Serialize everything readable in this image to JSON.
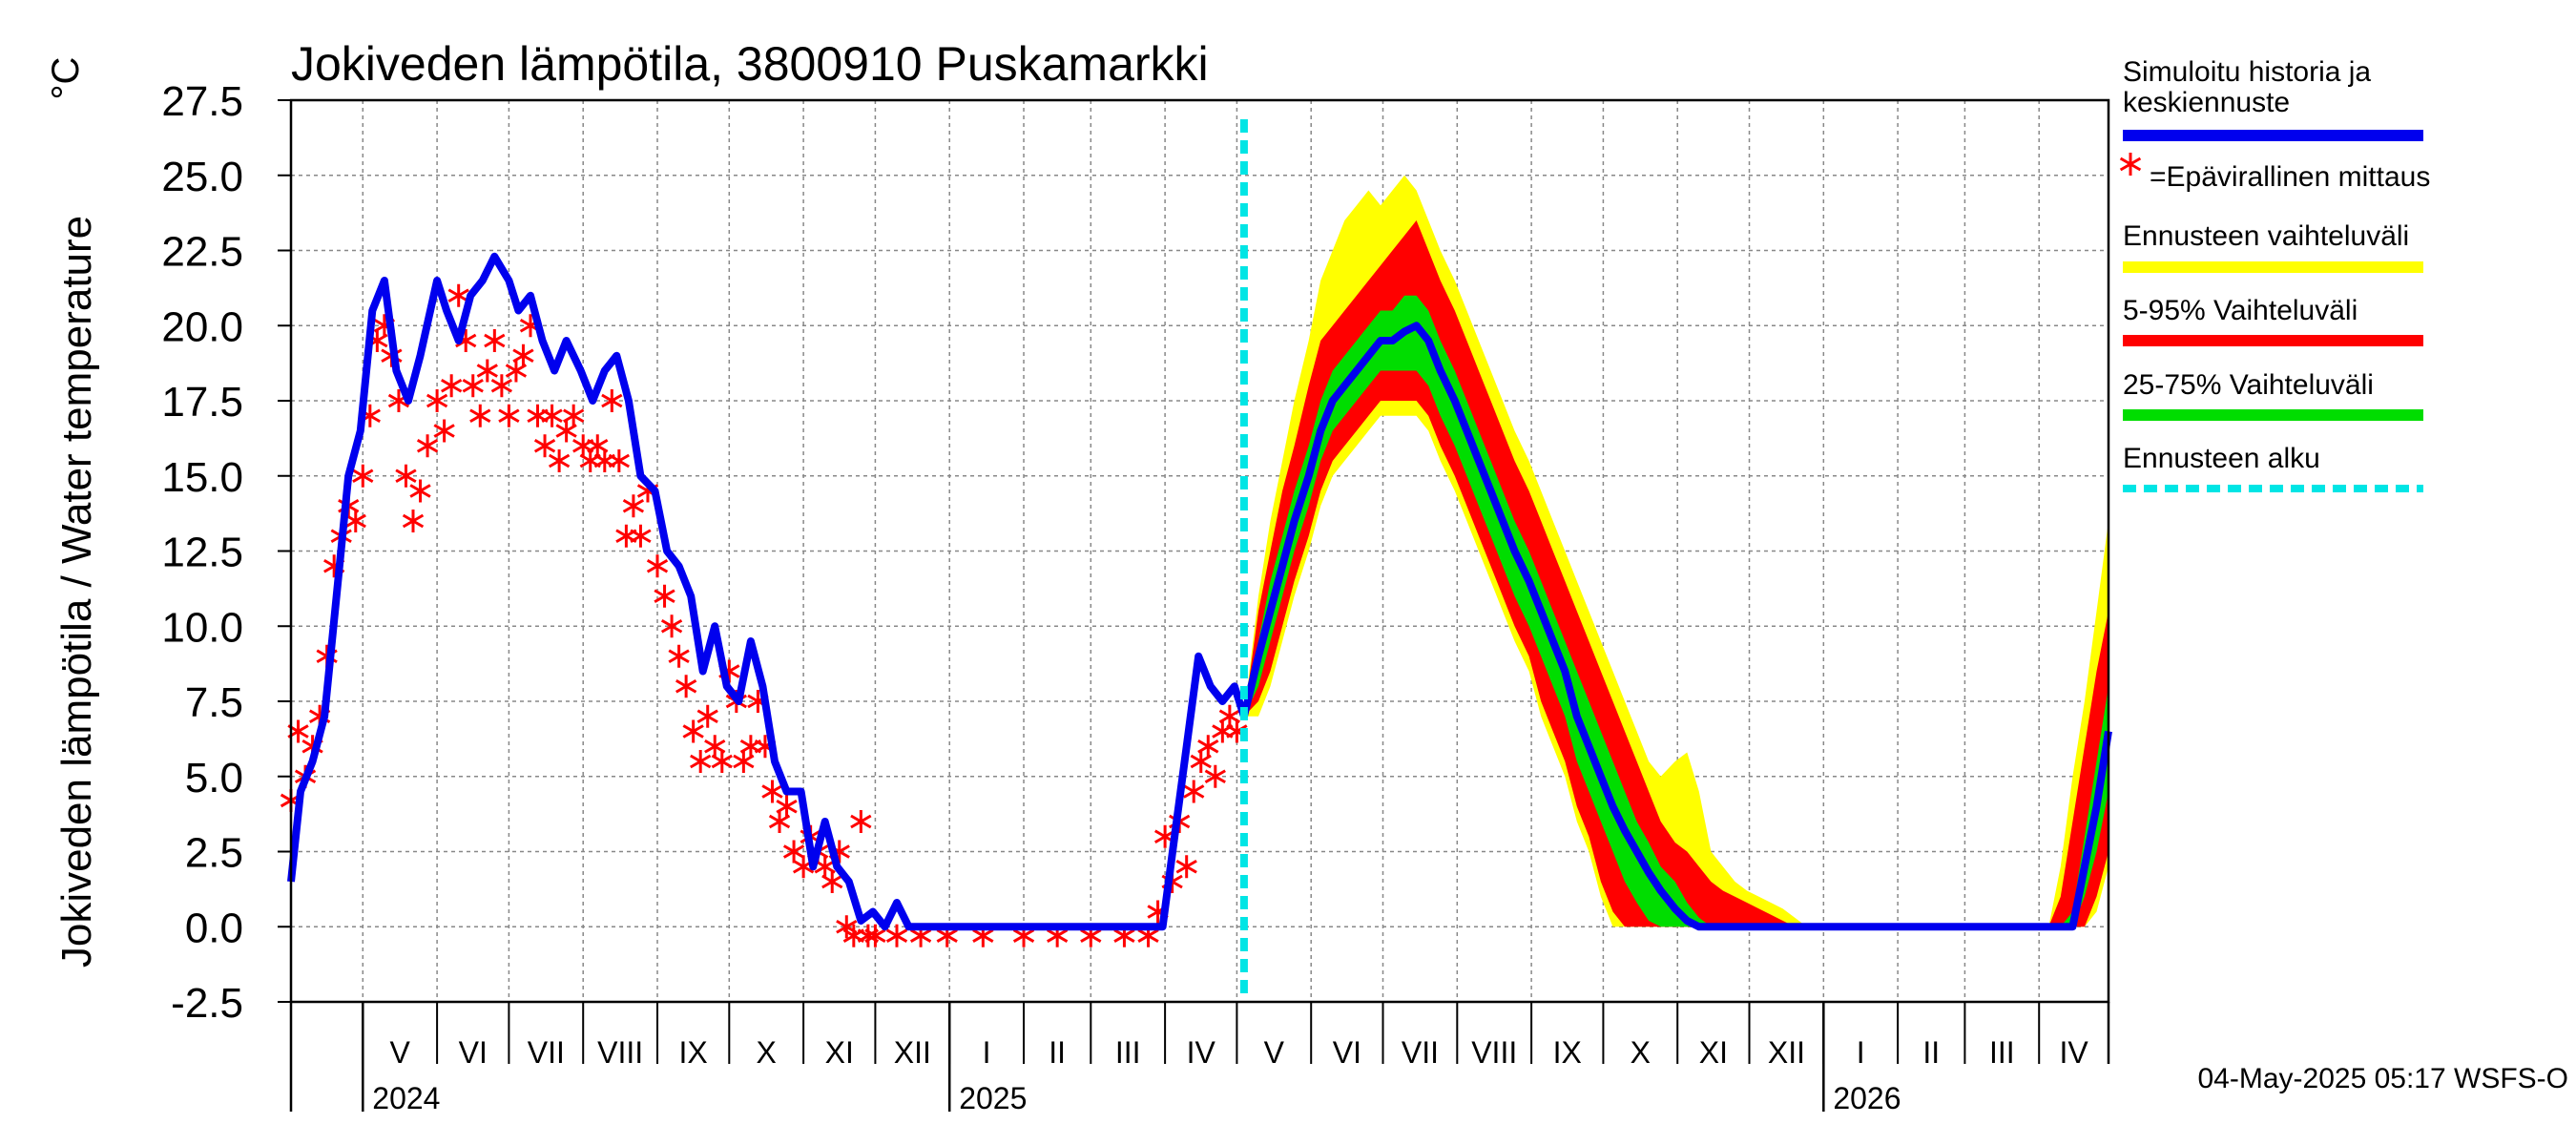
{
  "chart_data": {
    "type": "line",
    "title": "Jokiveden lämpötila, 3800910 Puskamarkki",
    "unit": "°C",
    "ylabel": "Jokiveden lämpötila / Water temperature",
    "ylim": [
      -2.5,
      27.5
    ],
    "yticks": [
      "27.5",
      "25.0",
      "22.5",
      "20.0",
      "17.5",
      "15.0",
      "12.5",
      "10.0",
      "7.5",
      "5.0",
      "2.5",
      "0.0",
      "-2.5"
    ],
    "x_range": [
      "2024-04-01",
      "2026-04-30"
    ],
    "grid": true,
    "forecast_start": "2025-05-04",
    "months": [
      {
        "label": "V",
        "start": "2024-05-01"
      },
      {
        "label": "VI",
        "start": "2024-06-01"
      },
      {
        "label": "VII",
        "start": "2024-07-01"
      },
      {
        "label": "VIII",
        "start": "2024-08-01"
      },
      {
        "label": "IX",
        "start": "2024-09-01"
      },
      {
        "label": "X",
        "start": "2024-10-01"
      },
      {
        "label": "XI",
        "start": "2024-11-01"
      },
      {
        "label": "XII",
        "start": "2024-12-01"
      },
      {
        "label": "I",
        "start": "2025-01-01"
      },
      {
        "label": "II",
        "start": "2025-02-01"
      },
      {
        "label": "III",
        "start": "2025-03-01"
      },
      {
        "label": "IV",
        "start": "2025-04-01"
      },
      {
        "label": "V",
        "start": "2025-05-01"
      },
      {
        "label": "VI",
        "start": "2025-06-01"
      },
      {
        "label": "VII",
        "start": "2025-07-01"
      },
      {
        "label": "VIII",
        "start": "2025-08-01"
      },
      {
        "label": "IX",
        "start": "2025-09-01"
      },
      {
        "label": "X",
        "start": "2025-10-01"
      },
      {
        "label": "XI",
        "start": "2025-11-01"
      },
      {
        "label": "XII",
        "start": "2025-12-01"
      },
      {
        "label": "I",
        "start": "2026-01-01"
      },
      {
        "label": "II",
        "start": "2026-02-01"
      },
      {
        "label": "III",
        "start": "2026-03-01"
      },
      {
        "label": "IV",
        "start": "2026-04-01"
      }
    ],
    "years": [
      {
        "label": "2024",
        "start": "2024-05-01"
      },
      {
        "label": "2025",
        "start": "2025-01-01"
      },
      {
        "label": "2026",
        "start": "2026-01-01"
      }
    ],
    "simulated_history": {
      "name": "Simuloitu historia ja keskiennuste",
      "color": "#0000ee",
      "x": [
        "2024-04-01",
        "2024-04-05",
        "2024-04-10",
        "2024-04-15",
        "2024-04-20",
        "2024-04-25",
        "2024-04-30",
        "2024-05-05",
        "2024-05-10",
        "2024-05-15",
        "2024-05-20",
        "2024-05-25",
        "2024-06-01",
        "2024-06-05",
        "2024-06-10",
        "2024-06-15",
        "2024-06-20",
        "2024-06-25",
        "2024-07-01",
        "2024-07-05",
        "2024-07-10",
        "2024-07-15",
        "2024-07-20",
        "2024-07-25",
        "2024-07-31",
        "2024-08-05",
        "2024-08-10",
        "2024-08-15",
        "2024-08-20",
        "2024-08-25",
        "2024-08-31",
        "2024-09-05",
        "2024-09-10",
        "2024-09-15",
        "2024-09-20",
        "2024-09-25",
        "2024-09-30",
        "2024-10-05",
        "2024-10-10",
        "2024-10-15",
        "2024-10-20",
        "2024-10-25",
        "2024-10-31",
        "2024-11-05",
        "2024-11-10",
        "2024-11-15",
        "2024-11-20",
        "2024-11-25",
        "2024-11-30",
        "2024-12-05",
        "2024-12-10",
        "2024-12-15",
        "2024-12-20",
        "2024-12-25",
        "2024-12-31",
        "2025-01-15",
        "2025-02-01",
        "2025-02-15",
        "2025-03-01",
        "2025-03-15",
        "2025-03-31",
        "2025-04-05",
        "2025-04-10",
        "2025-04-15",
        "2025-04-20",
        "2025-04-25",
        "2025-04-30",
        "2025-05-04"
      ],
      "y": [
        1.5,
        4.5,
        5.5,
        7.0,
        11.0,
        15.0,
        16.5,
        20.5,
        21.5,
        18.5,
        17.5,
        19.0,
        21.5,
        20.5,
        19.5,
        21.0,
        21.5,
        22.3,
        21.5,
        20.5,
        21.0,
        19.5,
        18.5,
        19.5,
        18.5,
        17.5,
        18.5,
        19.0,
        17.5,
        15.0,
        14.5,
        12.5,
        12.0,
        11.0,
        8.5,
        10.0,
        8.0,
        7.5,
        9.5,
        8.0,
        5.5,
        4.5,
        4.5,
        2.0,
        3.5,
        2.0,
        1.5,
        0.2,
        0.5,
        0.0,
        0.8,
        0.0,
        0.0,
        0.0,
        0.0,
        0.0,
        0.0,
        0.0,
        0.0,
        0.0,
        0.0,
        3.0,
        6.0,
        9.0,
        8.0,
        7.5,
        8.0,
        7.0
      ]
    },
    "observations": {
      "name": "=Epävirallinen mittaus",
      "color": "#ff0000",
      "x": [
        "2024-04-01",
        "2024-04-04",
        "2024-04-07",
        "2024-04-10",
        "2024-04-13",
        "2024-04-16",
        "2024-04-19",
        "2024-04-22",
        "2024-04-25",
        "2024-04-28",
        "2024-05-01",
        "2024-05-04",
        "2024-05-07",
        "2024-05-10",
        "2024-05-13",
        "2024-05-16",
        "2024-05-19",
        "2024-05-22",
        "2024-05-25",
        "2024-05-28",
        "2024-06-01",
        "2024-06-04",
        "2024-06-07",
        "2024-06-10",
        "2024-06-13",
        "2024-06-16",
        "2024-06-19",
        "2024-06-22",
        "2024-06-25",
        "2024-06-28",
        "2024-07-01",
        "2024-07-04",
        "2024-07-07",
        "2024-07-10",
        "2024-07-13",
        "2024-07-16",
        "2024-07-19",
        "2024-07-22",
        "2024-07-25",
        "2024-07-28",
        "2024-08-01",
        "2024-08-04",
        "2024-08-07",
        "2024-08-10",
        "2024-08-13",
        "2024-08-16",
        "2024-08-19",
        "2024-08-22",
        "2024-08-25",
        "2024-08-28",
        "2024-09-01",
        "2024-09-04",
        "2024-09-07",
        "2024-09-10",
        "2024-09-13",
        "2024-09-16",
        "2024-09-19",
        "2024-09-22",
        "2024-09-25",
        "2024-09-28",
        "2024-10-01",
        "2024-10-04",
        "2024-10-07",
        "2024-10-10",
        "2024-10-13",
        "2024-10-16",
        "2024-10-19",
        "2024-10-22",
        "2024-10-25",
        "2024-10-28",
        "2024-11-01",
        "2024-11-04",
        "2024-11-07",
        "2024-11-10",
        "2024-11-13",
        "2024-11-16",
        "2024-11-19",
        "2024-11-22",
        "2024-11-25",
        "2024-11-28",
        "2024-12-01",
        "2024-12-10",
        "2024-12-20",
        "2024-12-31",
        "2025-01-15",
        "2025-02-01",
        "2025-02-15",
        "2025-03-01",
        "2025-03-15",
        "2025-03-25",
        "2025-03-29",
        "2025-04-01",
        "2025-04-04",
        "2025-04-07",
        "2025-04-10",
        "2025-04-13",
        "2025-04-16",
        "2025-04-19",
        "2025-04-22",
        "2025-04-25",
        "2025-04-28",
        "2025-05-01"
      ],
      "y": [
        4.2,
        6.5,
        5.0,
        6.0,
        7.0,
        9.0,
        12.0,
        13.0,
        14.0,
        13.5,
        15.0,
        17.0,
        19.5,
        20.0,
        19.0,
        17.5,
        15.0,
        13.5,
        14.5,
        16.0,
        17.5,
        16.5,
        18.0,
        21.0,
        19.5,
        18.0,
        17.0,
        18.5,
        19.5,
        18.0,
        17.0,
        18.5,
        19.0,
        20.0,
        17.0,
        16.0,
        17.0,
        15.5,
        16.5,
        17.0,
        16.0,
        15.5,
        16.0,
        15.5,
        17.5,
        15.5,
        13.0,
        14.0,
        13.0,
        14.5,
        12.0,
        11.0,
        10.0,
        9.0,
        8.0,
        6.5,
        5.5,
        7.0,
        6.0,
        5.5,
        8.5,
        7.5,
        5.5,
        6.0,
        7.5,
        6.0,
        4.5,
        3.5,
        4.0,
        2.5,
        2.0,
        3.0,
        2.5,
        2.0,
        1.5,
        2.5,
        0.0,
        -0.3,
        3.5,
        -0.3,
        -0.3,
        -0.3,
        -0.3,
        -0.3,
        -0.3,
        -0.3,
        -0.3,
        -0.3,
        -0.3,
        -0.3,
        0.5,
        3.0,
        1.5,
        3.5,
        2.0,
        4.5,
        5.5,
        6.0,
        5.0,
        6.5,
        7.0,
        6.5
      ]
    },
    "forecast": {
      "x": [
        "2025-05-04",
        "2025-05-10",
        "2025-05-15",
        "2025-05-20",
        "2025-05-25",
        "2025-05-31",
        "2025-06-05",
        "2025-06-10",
        "2025-06-15",
        "2025-06-20",
        "2025-06-25",
        "2025-06-30",
        "2025-07-05",
        "2025-07-10",
        "2025-07-15",
        "2025-07-20",
        "2025-07-25",
        "2025-07-31",
        "2025-08-05",
        "2025-08-10",
        "2025-08-15",
        "2025-08-20",
        "2025-08-25",
        "2025-08-31",
        "2025-09-05",
        "2025-09-10",
        "2025-09-15",
        "2025-09-20",
        "2025-09-25",
        "2025-09-30",
        "2025-10-05",
        "2025-10-10",
        "2025-10-15",
        "2025-10-20",
        "2025-10-25",
        "2025-10-31",
        "2025-11-05",
        "2025-11-10",
        "2025-11-15",
        "2025-11-20",
        "2025-11-25",
        "2025-11-30",
        "2025-12-05",
        "2025-12-10",
        "2025-12-15",
        "2025-12-20",
        "2025-12-25",
        "2025-12-31",
        "2026-01-15",
        "2026-02-01",
        "2026-02-15",
        "2026-03-01",
        "2026-03-15",
        "2026-03-25",
        "2026-04-01",
        "2026-04-05",
        "2026-04-10",
        "2026-04-15",
        "2026-04-20",
        "2026-04-25",
        "2026-04-30"
      ],
      "median": [
        7.0,
        9.0,
        10.5,
        12.0,
        13.5,
        15.0,
        16.5,
        17.5,
        18.0,
        18.5,
        19.0,
        19.5,
        19.5,
        19.8,
        20.0,
        19.5,
        18.5,
        17.5,
        16.5,
        15.5,
        14.5,
        13.5,
        12.5,
        11.5,
        10.5,
        9.5,
        8.5,
        7.0,
        6.0,
        5.0,
        4.0,
        3.2,
        2.5,
        1.8,
        1.2,
        0.6,
        0.2,
        0.0,
        0.0,
        0.0,
        0.0,
        0.0,
        0.0,
        0.0,
        0.0,
        0.0,
        0.0,
        0.0,
        0.0,
        0.0,
        0.0,
        0.0,
        0.0,
        0.0,
        0.0,
        0.0,
        0.0,
        0.0,
        2.0,
        4.0,
        6.5
      ],
      "p25": [
        7.0,
        8.0,
        9.5,
        11.0,
        12.5,
        14.0,
        15.5,
        16.5,
        17.0,
        17.5,
        18.0,
        18.5,
        18.5,
        18.5,
        18.5,
        18.0,
        17.0,
        16.0,
        15.0,
        14.0,
        13.0,
        12.0,
        11.0,
        10.0,
        9.0,
        8.0,
        7.0,
        5.5,
        4.5,
        3.5,
        2.5,
        1.5,
        0.8,
        0.2,
        0.0,
        0.0,
        0.0,
        0.0,
        0.0,
        0.0,
        0.0,
        0.0,
        0.0,
        0.0,
        0.0,
        0.0,
        0.0,
        0.0,
        0.0,
        0.0,
        0.0,
        0.0,
        0.0,
        0.0,
        0.0,
        0.0,
        0.0,
        0.0,
        1.0,
        2.5,
        4.5
      ],
      "p75": [
        7.0,
        9.5,
        11.5,
        13.0,
        14.5,
        16.0,
        17.5,
        18.5,
        19.0,
        19.5,
        20.0,
        20.5,
        20.5,
        21.0,
        21.0,
        20.5,
        19.5,
        18.5,
        17.5,
        16.5,
        15.5,
        14.5,
        13.5,
        12.5,
        11.5,
        10.5,
        9.5,
        8.5,
        7.5,
        6.5,
        5.5,
        4.5,
        3.5,
        2.8,
        2.0,
        1.5,
        0.8,
        0.3,
        0.0,
        0.0,
        0.0,
        0.0,
        0.0,
        0.0,
        0.0,
        0.0,
        0.0,
        0.0,
        0.0,
        0.0,
        0.0,
        0.0,
        0.0,
        0.0,
        0.0,
        0.0,
        0.0,
        0.5,
        3.0,
        5.5,
        8.0
      ],
      "p05": [
        7.0,
        7.5,
        8.5,
        10.0,
        11.5,
        13.0,
        14.5,
        15.5,
        16.0,
        16.5,
        17.0,
        17.5,
        17.5,
        17.5,
        17.5,
        17.0,
        16.0,
        15.0,
        14.0,
        13.0,
        12.0,
        11.0,
        10.0,
        9.0,
        7.5,
        6.5,
        5.5,
        4.0,
        3.0,
        1.5,
        0.5,
        0.0,
        0.0,
        0.0,
        0.0,
        0.0,
        0.0,
        0.0,
        0.0,
        0.0,
        0.0,
        0.0,
        0.0,
        0.0,
        0.0,
        0.0,
        0.0,
        0.0,
        0.0,
        0.0,
        0.0,
        0.0,
        0.0,
        0.0,
        0.0,
        0.0,
        0.0,
        0.0,
        0.0,
        1.0,
        2.5
      ],
      "p95": [
        7.0,
        10.5,
        12.5,
        14.5,
        16.0,
        18.0,
        19.5,
        20.0,
        20.5,
        21.0,
        21.5,
        22.0,
        22.5,
        23.0,
        23.5,
        22.5,
        21.5,
        20.5,
        19.5,
        18.5,
        17.5,
        16.5,
        15.5,
        14.5,
        13.5,
        12.5,
        11.5,
        10.5,
        9.5,
        8.5,
        7.5,
        6.5,
        5.5,
        4.5,
        3.5,
        2.8,
        2.5,
        2.0,
        1.5,
        1.2,
        1.0,
        0.8,
        0.6,
        0.4,
        0.2,
        0.0,
        0.0,
        0.0,
        0.0,
        0.0,
        0.0,
        0.0,
        0.0,
        0.0,
        0.0,
        0.0,
        1.0,
        3.5,
        6.0,
        8.5,
        10.5
      ],
      "min": [
        7.0,
        7.0,
        8.0,
        9.5,
        11.0,
        12.5,
        14.0,
        15.0,
        15.5,
        16.0,
        16.5,
        17.0,
        17.0,
        17.0,
        17.0,
        16.5,
        15.5,
        14.5,
        13.5,
        12.5,
        11.5,
        10.5,
        9.5,
        8.5,
        7.0,
        6.0,
        5.0,
        3.5,
        2.5,
        1.0,
        0.0,
        0.0,
        0.0,
        0.0,
        0.0,
        0.0,
        0.0,
        0.0,
        0.0,
        0.0,
        0.0,
        0.0,
        0.0,
        0.0,
        0.0,
        0.0,
        0.0,
        0.0,
        0.0,
        0.0,
        0.0,
        0.0,
        0.0,
        0.0,
        0.0,
        0.0,
        0.0,
        0.0,
        0.0,
        0.5,
        2.0
      ],
      "max": [
        7.0,
        11.0,
        13.5,
        15.5,
        17.5,
        19.5,
        21.5,
        22.5,
        23.5,
        24.0,
        24.5,
        24.0,
        24.5,
        25.0,
        24.5,
        23.5,
        22.5,
        21.5,
        20.5,
        19.5,
        18.5,
        17.5,
        16.5,
        15.5,
        14.5,
        13.5,
        12.5,
        11.5,
        10.5,
        9.5,
        8.5,
        7.5,
        6.5,
        5.5,
        5.0,
        5.5,
        5.8,
        4.5,
        2.5,
        2.0,
        1.5,
        1.2,
        1.0,
        0.8,
        0.6,
        0.3,
        0.0,
        0.0,
        0.0,
        0.0,
        0.0,
        0.0,
        0.0,
        0.0,
        0.0,
        0.0,
        2.0,
        5.0,
        7.5,
        10.5,
        13.5
      ]
    },
    "legend": {
      "placement": "right",
      "items": [
        {
          "label": "Simuloitu historia ja\nkeskiennuste",
          "color": "#0000ee",
          "style": "line"
        },
        {
          "label": "=Epävirallinen mittaus",
          "color": "#ff0000",
          "style": "star"
        },
        {
          "label": "Ennusteen vaihteluväli",
          "color": "#ffff00",
          "style": "line"
        },
        {
          "label": "5-95% Vaihteluväli",
          "color": "#ff0000",
          "style": "line"
        },
        {
          "label": "25-75% Vaihteluväli",
          "color": "#00dd00",
          "style": "line"
        },
        {
          "label": "Ennusteen alku",
          "color": "#00e5e5",
          "style": "dashed"
        }
      ]
    },
    "footer": "04-May-2025 05:17 WSFS-O"
  }
}
